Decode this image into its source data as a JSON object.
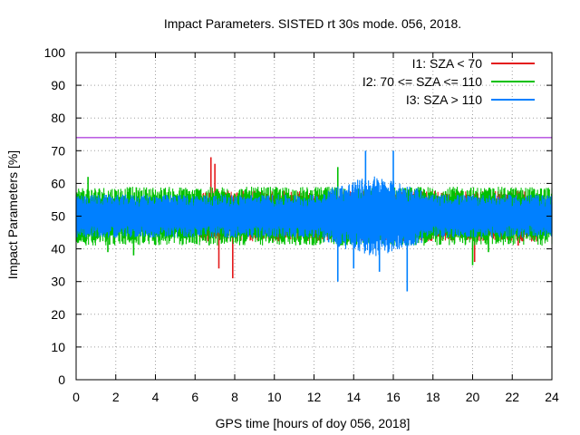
{
  "chart_data": {
    "type": "line",
    "title": "Impact Parameters. SISTED rt 30s mode. 056, 2018.",
    "xlabel": "GPS time [hours of doy 056, 2018]",
    "ylabel": "Impact Parameters [%]",
    "xlim": [
      0,
      24
    ],
    "ylim": [
      0,
      100
    ],
    "x_ticks": [
      0,
      2,
      4,
      6,
      8,
      10,
      12,
      14,
      16,
      18,
      20,
      22,
      24
    ],
    "y_ticks": [
      0,
      10,
      20,
      30,
      40,
      50,
      60,
      70,
      80,
      90,
      100
    ],
    "grid": true,
    "legend_position": "top-right",
    "reference_line": {
      "y": 74,
      "color": "#9400d3"
    },
    "series": [
      {
        "name": "I1: SZA < 70",
        "color": "#e41a1c",
        "x_range": [
          6.2,
          23.3
        ],
        "mean": 50,
        "typical_band": [
          44,
          57
        ],
        "spikes": [
          [
            6.8,
            68
          ],
          [
            7.0,
            66
          ],
          [
            7.9,
            31
          ],
          [
            7.2,
            34
          ],
          [
            22.3,
            41
          ],
          [
            20.1,
            36
          ]
        ]
      },
      {
        "name": "I2: 70 <= SZA <= 110",
        "color": "#00c000",
        "x_range": [
          0,
          24
        ],
        "mean": 50,
        "typical_band": [
          43,
          58
        ],
        "spikes": [
          [
            0.6,
            62
          ],
          [
            1.6,
            39
          ],
          [
            2.9,
            38
          ],
          [
            13.2,
            65
          ],
          [
            20.0,
            35
          ],
          [
            20.8,
            39
          ]
        ]
      },
      {
        "name": "I3: SZA > 110",
        "color": "#0080ff",
        "x_range": [
          0,
          24
        ],
        "mean": 50,
        "typical_band": [
          45,
          56
        ],
        "spikes": [
          [
            13.2,
            30
          ],
          [
            14.6,
            70
          ],
          [
            16.0,
            70
          ],
          [
            16.7,
            27
          ],
          [
            15.3,
            33
          ],
          [
            14.0,
            34
          ]
        ]
      }
    ]
  }
}
